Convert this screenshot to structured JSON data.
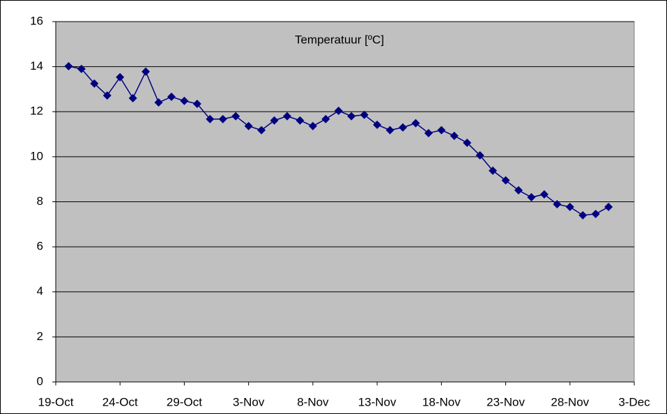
{
  "chart_data": {
    "type": "line",
    "title": "Temperatuur [ºC]",
    "x": [
      "20-Oct",
      "21-Oct",
      "22-Oct",
      "23-Oct",
      "24-Oct",
      "25-Oct",
      "26-Oct",
      "27-Oct",
      "28-Oct",
      "29-Oct",
      "30-Oct",
      "31-Oct",
      "1-Nov",
      "2-Nov",
      "3-Nov",
      "4-Nov",
      "5-Nov",
      "6-Nov",
      "7-Nov",
      "8-Nov",
      "9-Nov",
      "10-Nov",
      "11-Nov",
      "12-Nov",
      "13-Nov",
      "14-Nov",
      "15-Nov",
      "16-Nov",
      "17-Nov",
      "18-Nov",
      "19-Nov",
      "20-Nov",
      "21-Nov",
      "22-Nov",
      "23-Nov",
      "24-Nov",
      "25-Nov",
      "26-Nov",
      "27-Nov",
      "28-Nov",
      "29-Nov",
      "30-Nov",
      "1-Dec"
    ],
    "series": [
      {
        "name": "Temperatuur",
        "color": "#000080",
        "values": [
          14.02,
          13.9,
          13.25,
          12.72,
          13.53,
          12.6,
          13.78,
          12.41,
          12.66,
          12.48,
          12.35,
          11.67,
          11.67,
          11.8,
          11.36,
          11.18,
          11.61,
          11.8,
          11.61,
          11.36,
          11.67,
          12.04,
          11.8,
          11.86,
          11.42,
          11.18,
          11.3,
          11.49,
          11.05,
          11.18,
          10.93,
          10.62,
          10.06,
          9.38,
          8.95,
          8.51,
          8.2,
          8.33,
          7.89,
          7.77,
          7.4,
          7.46,
          7.77
        ]
      }
    ],
    "xlim": [
      "19-Oct",
      "3-Dec"
    ],
    "xticks": [
      "19-Oct",
      "24-Oct",
      "29-Oct",
      "3-Nov",
      "8-Nov",
      "13-Nov",
      "18-Nov",
      "23-Nov",
      "28-Nov",
      "3-Dec"
    ],
    "ylim": [
      0,
      16
    ],
    "yticks": [
      0,
      2,
      4,
      6,
      8,
      10,
      12,
      14,
      16
    ],
    "grid": true
  }
}
